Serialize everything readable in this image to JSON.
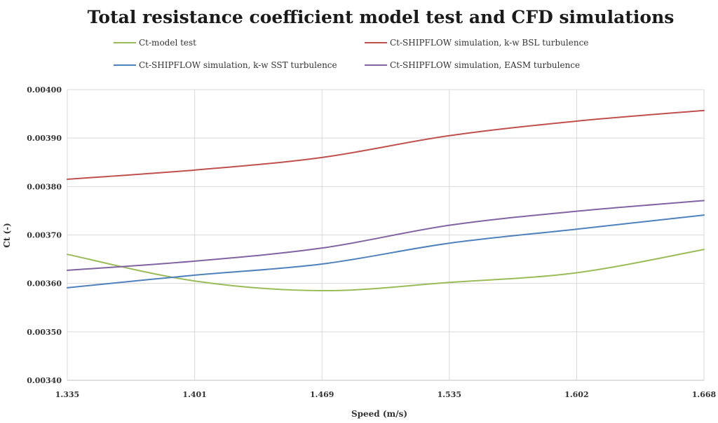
{
  "chart_data": {
    "type": "line",
    "title": "Total resistance coefficient  model test  and CFD simulations",
    "xlabel": "Speed (m/s)",
    "ylabel": "Ct (-)",
    "categories": [
      "1.335",
      "1.401",
      "1.469",
      "1.535",
      "1.602",
      "1.668"
    ],
    "ylim": [
      0.0034,
      0.004
    ],
    "yticks": [
      "0.00340",
      "0.00350",
      "0.00360",
      "0.00370",
      "0.00380",
      "0.00390",
      "0.00400"
    ],
    "ytick_values": [
      0.0034,
      0.0035,
      0.0036,
      0.0037,
      0.0038,
      0.0039,
      0.004
    ],
    "grid": true,
    "legend_position": "top",
    "series": [
      {
        "name": "Ct-model test",
        "color": "#9bbb59",
        "values": [
          0.00366,
          0.003605,
          0.003585,
          0.003602,
          0.003622,
          0.00367
        ]
      },
      {
        "name": "Ct-SHIPFLOW simulation, k-w BSL turbulence",
        "color": "#c0504d",
        "values": [
          0.003815,
          0.003834,
          0.00386,
          0.003905,
          0.003935,
          0.003957
        ]
      },
      {
        "name": "Ct-SHIPFLOW simulation, k-w SST turbulence",
        "color": "#4f81bd",
        "values": [
          0.003591,
          0.003617,
          0.00364,
          0.003683,
          0.003712,
          0.003741
        ]
      },
      {
        "name": "Ct-SHIPFLOW simulation, EASM turbulence",
        "color": "#8064a2",
        "values": [
          0.003627,
          0.003646,
          0.003673,
          0.00372,
          0.003749,
          0.003771
        ]
      }
    ]
  }
}
